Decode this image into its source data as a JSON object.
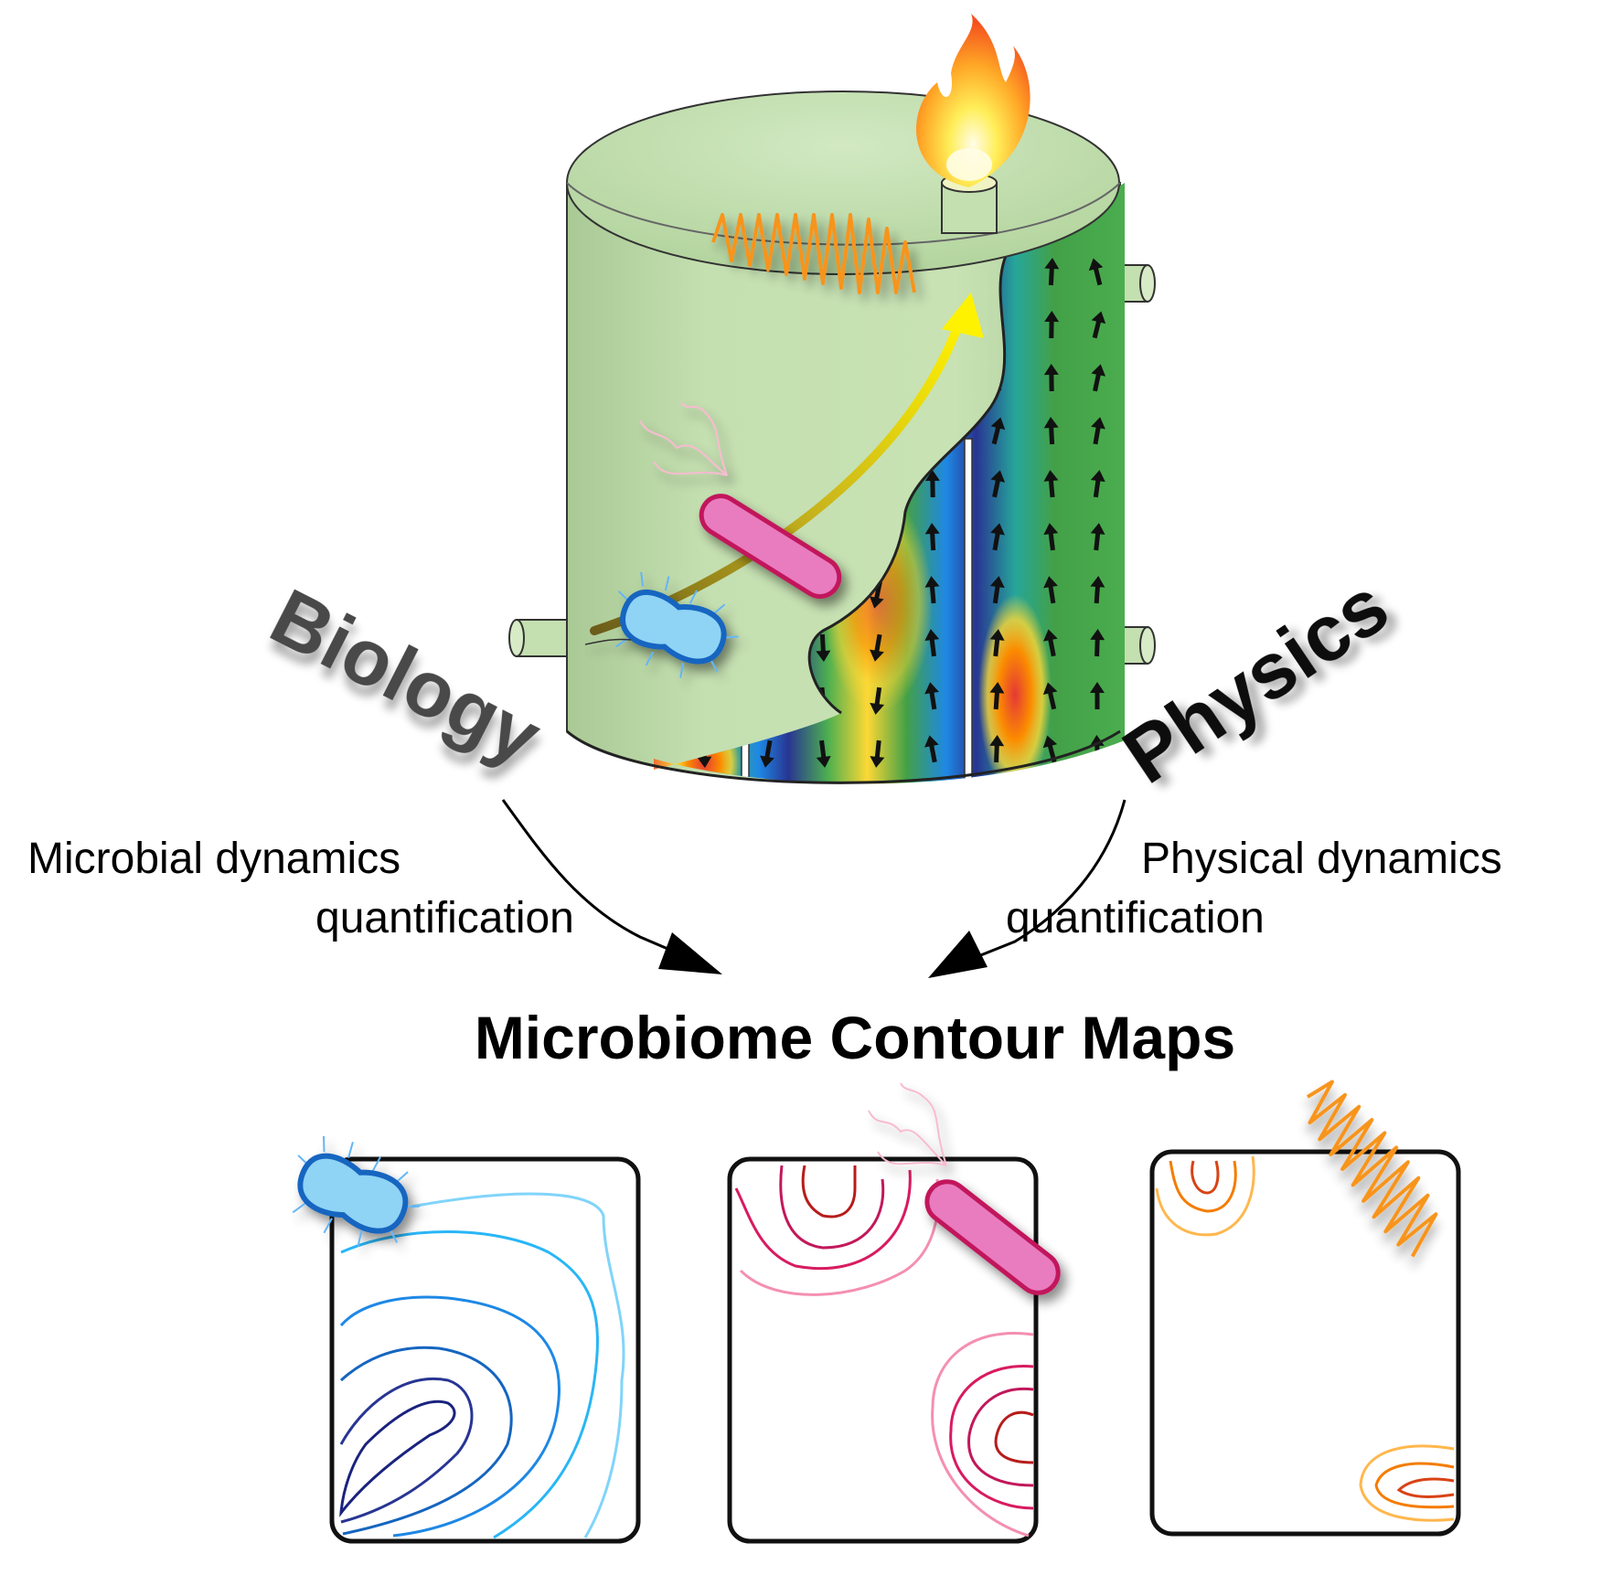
{
  "labels": {
    "biology": "Biology",
    "physics": "Physics",
    "microbial_line1": "Microbial dynamics",
    "microbial_line2": "quantification",
    "physical_line1": "Physical dynamics",
    "physical_line2": "quantification",
    "title": "Microbiome Contour Maps"
  },
  "colors": {
    "tank": "#c4dfb0",
    "tank_shade": "#a9c995",
    "blue_microbe": "#8fd3f5",
    "blue_outline": "#1565c0",
    "pink_microbe": "#e87cbf",
    "pink_outline": "#c2185b",
    "wave": "#f7941d",
    "yellow_arrow": "#f4e81a",
    "blue_contours": [
      "#1a237e",
      "#283593",
      "#1565c0",
      "#1e88e5",
      "#29b6f6",
      "#81d4fa"
    ],
    "pink_contours": [
      "#b71c1c",
      "#d81b60",
      "#f48fb1"
    ],
    "orange_contours": [
      "#d84315",
      "#f57c00",
      "#ffb74d"
    ]
  },
  "icons": [
    "flame-icon",
    "microbe-rod-icon",
    "microbe-flagellated-icon",
    "wave-icon"
  ]
}
